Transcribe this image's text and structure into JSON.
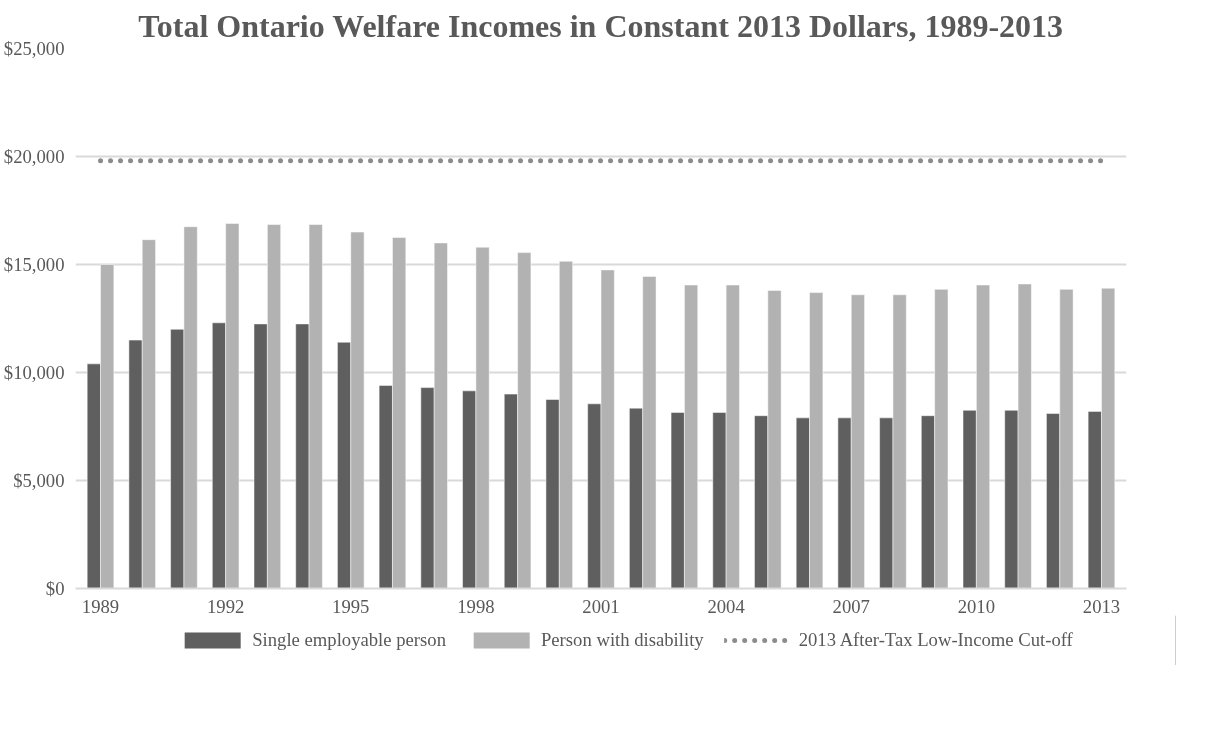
{
  "chart_data": {
    "type": "bar",
    "title": "Total Ontario Welfare Incomes in Constant 2013 Dollars, 1989-2013",
    "categories": [
      "1989",
      null,
      null,
      "1992",
      null,
      null,
      "1995",
      null,
      null,
      "1998",
      null,
      null,
      "2001",
      null,
      null,
      "2004",
      null,
      null,
      "2007",
      null,
      null,
      "2010",
      null,
      null,
      "2013"
    ],
    "series": [
      {
        "name": "Single employable person",
        "color": "#5f5f5f",
        "values": [
          10400,
          11500,
          12000,
          12300,
          12250,
          12250,
          11400,
          9400,
          9300,
          9150,
          9000,
          8750,
          8550,
          8350,
          8150,
          8150,
          8000,
          7900,
          7900,
          7900,
          8000,
          8250,
          8250,
          8100,
          8200
        ]
      },
      {
        "name": "Person with disability",
        "color": "#b2b2b2",
        "values": [
          15000,
          16150,
          16750,
          16900,
          16850,
          16850,
          16500,
          16250,
          16000,
          15800,
          15550,
          15150,
          14750,
          14450,
          14050,
          14050,
          13800,
          13700,
          13600,
          13600,
          13850,
          14050,
          14100,
          13850,
          13900
        ]
      },
      {
        "name": "2013 After-Tax Low-Income Cut-off",
        "color": "#8c8c8c",
        "type": "line",
        "line_style": "dotted",
        "values": [
          19800,
          19800,
          19800,
          19800,
          19800,
          19800,
          19800,
          19800,
          19800,
          19800,
          19800,
          19800,
          19800,
          19800,
          19800,
          19800,
          19800,
          19800,
          19800,
          19800,
          19800,
          19800,
          19800,
          19800,
          19800
        ]
      }
    ],
    "ylim": [
      0,
      25000
    ],
    "yticks": [
      {
        "value": 0,
        "label": "$0"
      },
      {
        "value": 5000,
        "label": "$5,000"
      },
      {
        "value": 10000,
        "label": "$10,000"
      },
      {
        "value": 15000,
        "label": "$15,000"
      },
      {
        "value": 20000,
        "label": "$20,000"
      },
      {
        "value": 25000,
        "label": "$25,000"
      }
    ],
    "grid": "y",
    "legend": "bottom"
  }
}
